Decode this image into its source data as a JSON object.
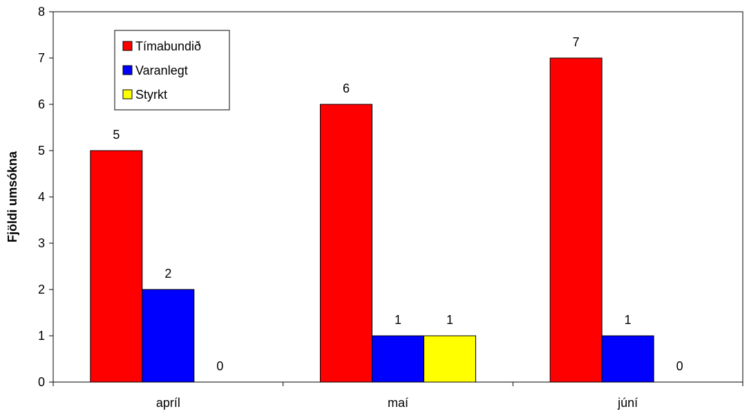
{
  "chart_data": {
    "type": "bar",
    "title": "",
    "xlabel": "",
    "ylabel": "Fjöldi umsókna",
    "ylim": [
      0,
      8
    ],
    "yticks": [
      0,
      1,
      2,
      3,
      4,
      5,
      6,
      7,
      8
    ],
    "grid": false,
    "legend_position": "top-left",
    "categories": [
      "apríl",
      "maí",
      "júní"
    ],
    "series": [
      {
        "name": "Tímabundið",
        "color": "#ff0000",
        "values": [
          5,
          6,
          7
        ]
      },
      {
        "name": "Varanlegt",
        "color": "#0000ff",
        "values": [
          2,
          1,
          1
        ]
      },
      {
        "name": "Styrkt",
        "color": "#ffff00",
        "values": [
          0,
          1,
          0
        ]
      }
    ]
  }
}
